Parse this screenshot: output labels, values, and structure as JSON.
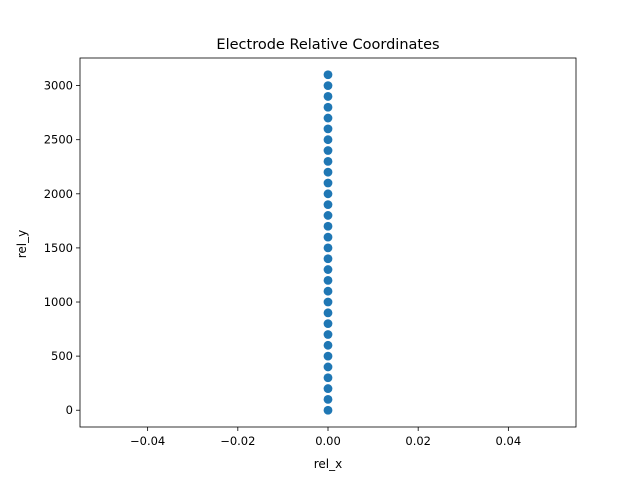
{
  "chart_data": {
    "type": "scatter",
    "title": "Electrode Relative Coordinates",
    "xlabel": "rel_x",
    "ylabel": "rel_y",
    "xlim": [
      -0.055,
      0.055
    ],
    "ylim": [
      -155,
      3255
    ],
    "x_ticks": [
      -0.04,
      -0.02,
      0.0,
      0.02,
      0.04
    ],
    "x_tick_labels": [
      "−0.04",
      "−0.02",
      "0.00",
      "0.02",
      "0.04"
    ],
    "y_ticks": [
      0,
      500,
      1000,
      1500,
      2000,
      2500,
      3000
    ],
    "y_tick_labels": [
      "0",
      "500",
      "1000",
      "1500",
      "2000",
      "2500",
      "3000"
    ],
    "grid": false,
    "series": [
      {
        "color": "#1f77b4",
        "x": [
          0,
          0,
          0,
          0,
          0,
          0,
          0,
          0,
          0,
          0,
          0,
          0,
          0,
          0,
          0,
          0,
          0,
          0,
          0,
          0,
          0,
          0,
          0,
          0,
          0,
          0,
          0,
          0,
          0,
          0,
          0,
          0
        ],
        "y": [
          0,
          100,
          200,
          300,
          400,
          500,
          600,
          700,
          800,
          900,
          1000,
          1100,
          1200,
          1300,
          1400,
          1500,
          1600,
          1700,
          1800,
          1900,
          2000,
          2100,
          2200,
          2300,
          2400,
          2500,
          2600,
          2700,
          2800,
          2900,
          3000,
          3100
        ]
      }
    ]
  }
}
